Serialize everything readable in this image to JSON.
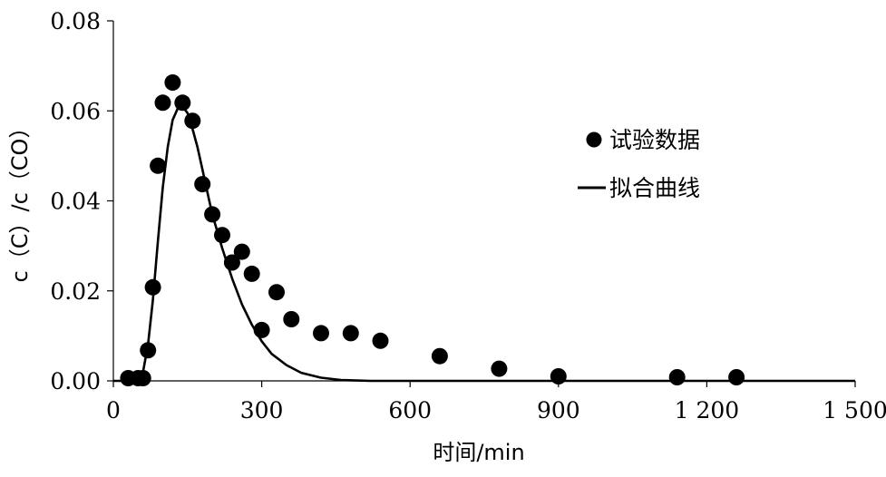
{
  "chart_data": {
    "type": "scatter",
    "title": "",
    "xlabel": "时间/min",
    "ylabel": "c（C）/c（CO）",
    "xlim": [
      0,
      1500
    ],
    "ylim": [
      0,
      0.08
    ],
    "x_ticks": [
      "0",
      "300",
      "600",
      "900",
      "1 200",
      "1 500"
    ],
    "y_ticks": [
      "0.00",
      "0.02",
      "0.04",
      "0.06",
      "0.08"
    ],
    "grid": false,
    "legend_position": "right",
    "series": [
      {
        "name": "试验数据",
        "kind": "scatter",
        "color": "#000000",
        "points": [
          [
            30,
            0.0006
          ],
          [
            50,
            0.0006
          ],
          [
            60,
            0.0006
          ],
          [
            70,
            0.0068
          ],
          [
            80,
            0.0208
          ],
          [
            90,
            0.0478
          ],
          [
            100,
            0.0618
          ],
          [
            120,
            0.0663
          ],
          [
            140,
            0.0618
          ],
          [
            160,
            0.0578
          ],
          [
            180,
            0.0437
          ],
          [
            200,
            0.037
          ],
          [
            220,
            0.0324
          ],
          [
            240,
            0.0263
          ],
          [
            260,
            0.0287
          ],
          [
            280,
            0.0238
          ],
          [
            300,
            0.0113
          ],
          [
            330,
            0.0197
          ],
          [
            360,
            0.0137
          ],
          [
            420,
            0.0106
          ],
          [
            480,
            0.0106
          ],
          [
            540,
            0.0089
          ],
          [
            660,
            0.0055
          ],
          [
            780,
            0.0027
          ],
          [
            900,
            0.001
          ],
          [
            1140,
            0.0008
          ],
          [
            1260,
            0.0008
          ]
        ]
      },
      {
        "name": "拟合曲线",
        "kind": "line",
        "color": "#000000",
        "points": [
          [
            0,
            0
          ],
          [
            55,
            0
          ],
          [
            60,
            0.002
          ],
          [
            70,
            0.008
          ],
          [
            80,
            0.018
          ],
          [
            90,
            0.031
          ],
          [
            100,
            0.043
          ],
          [
            110,
            0.052
          ],
          [
            120,
            0.058
          ],
          [
            130,
            0.0605
          ],
          [
            140,
            0.061
          ],
          [
            150,
            0.0595
          ],
          [
            160,
            0.056
          ],
          [
            170,
            0.052
          ],
          [
            180,
            0.047
          ],
          [
            190,
            0.042
          ],
          [
            200,
            0.037
          ],
          [
            220,
            0.0295
          ],
          [
            240,
            0.0228
          ],
          [
            260,
            0.017
          ],
          [
            280,
            0.0125
          ],
          [
            300,
            0.0088
          ],
          [
            320,
            0.006
          ],
          [
            350,
            0.0035
          ],
          [
            380,
            0.0018
          ],
          [
            420,
            0.0007
          ],
          [
            460,
            0.0002
          ],
          [
            520,
            0.0
          ],
          [
            1500,
            0.0
          ]
        ]
      }
    ]
  }
}
